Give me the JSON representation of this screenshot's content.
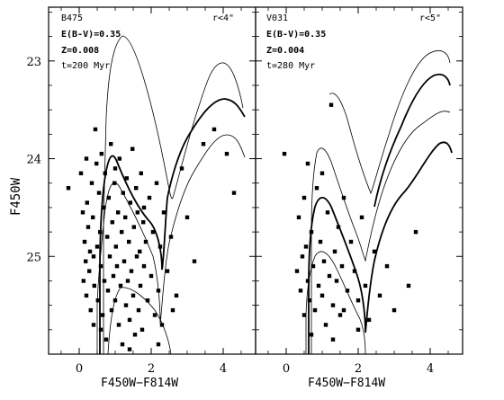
{
  "chart_data": [
    {
      "type": "scatter",
      "panel": "left",
      "annotations": [
        "B475",
        "E(B-V)=0.35",
        "Z=0.008",
        "t=200 Myr"
      ],
      "region": "r<4\"",
      "xlabel": "F450W−F814W",
      "ylabel": "F450W",
      "xlim": [
        -0.85,
        4.9
      ],
      "ylim": [
        26.0,
        22.45
      ],
      "y_inverted": true,
      "x_ticks": [
        "0",
        "2",
        "4"
      ],
      "y_ticks": [
        "23",
        "24",
        "25"
      ],
      "points": [
        {
          "x": -0.3,
          "y": 24.3
        },
        {
          "x": 0.05,
          "y": 24.15
        },
        {
          "x": 0.1,
          "y": 24.55
        },
        {
          "x": 0.12,
          "y": 25.25
        },
        {
          "x": 0.15,
          "y": 24.85
        },
        {
          "x": 0.18,
          "y": 25.05
        },
        {
          "x": 0.2,
          "y": 25.4
        },
        {
          "x": 0.22,
          "y": 24.45
        },
        {
          "x": 0.25,
          "y": 24.7
        },
        {
          "x": 0.28,
          "y": 25.15
        },
        {
          "x": 0.3,
          "y": 24.95
        },
        {
          "x": 0.32,
          "y": 25.55
        },
        {
          "x": 0.35,
          "y": 24.25
        },
        {
          "x": 0.38,
          "y": 24.6
        },
        {
          "x": 0.4,
          "y": 25.7
        },
        {
          "x": 0.42,
          "y": 25.3
        },
        {
          "x": 0.45,
          "y": 23.7
        },
        {
          "x": 0.48,
          "y": 24.05
        },
        {
          "x": 0.5,
          "y": 24.9
        },
        {
          "x": 0.52,
          "y": 25.45
        },
        {
          "x": 0.55,
          "y": 24.35
        },
        {
          "x": 0.58,
          "y": 24.75
        },
        {
          "x": 0.6,
          "y": 25.1
        },
        {
          "x": 0.62,
          "y": 23.95
        },
        {
          "x": 0.65,
          "y": 25.6
        },
        {
          "x": 0.68,
          "y": 24.5
        },
        {
          "x": 0.7,
          "y": 25.25
        },
        {
          "x": 0.72,
          "y": 24.15
        },
        {
          "x": 0.75,
          "y": 25.85
        },
        {
          "x": 0.78,
          "y": 24.8
        },
        {
          "x": 0.8,
          "y": 25.35
        },
        {
          "x": 0.82,
          "y": 24.4
        },
        {
          "x": 0.85,
          "y": 25.0
        },
        {
          "x": 0.88,
          "y": 23.85
        },
        {
          "x": 0.9,
          "y": 25.55
        },
        {
          "x": 0.92,
          "y": 24.65
        },
        {
          "x": 0.95,
          "y": 25.2
        },
        {
          "x": 0.98,
          "y": 24.25
        },
        {
          "x": 1.0,
          "y": 25.45
        },
        {
          "x": 1.02,
          "y": 24.9
        },
        {
          "x": 1.05,
          "y": 25.1
        },
        {
          "x": 1.08,
          "y": 24.55
        },
        {
          "x": 1.1,
          "y": 25.7
        },
        {
          "x": 1.12,
          "y": 24.0
        },
        {
          "x": 1.15,
          "y": 25.3
        },
        {
          "x": 1.18,
          "y": 24.75
        },
        {
          "x": 1.2,
          "y": 25.9
        },
        {
          "x": 1.22,
          "y": 24.35
        },
        {
          "x": 1.25,
          "y": 25.05
        },
        {
          "x": 1.28,
          "y": 24.6
        },
        {
          "x": 1.3,
          "y": 25.5
        },
        {
          "x": 1.32,
          "y": 24.2
        },
        {
          "x": 1.35,
          "y": 25.25
        },
        {
          "x": 1.38,
          "y": 24.85
        },
        {
          "x": 1.4,
          "y": 25.65
        },
        {
          "x": 1.42,
          "y": 24.45
        },
        {
          "x": 1.45,
          "y": 25.15
        },
        {
          "x": 1.48,
          "y": 23.9
        },
        {
          "x": 1.5,
          "y": 25.4
        },
        {
          "x": 1.52,
          "y": 24.7
        },
        {
          "x": 1.55,
          "y": 25.8
        },
        {
          "x": 1.58,
          "y": 24.3
        },
        {
          "x": 1.6,
          "y": 25.0
        },
        {
          "x": 1.62,
          "y": 24.55
        },
        {
          "x": 1.65,
          "y": 25.55
        },
        {
          "x": 1.68,
          "y": 24.95
        },
        {
          "x": 1.7,
          "y": 25.3
        },
        {
          "x": 1.72,
          "y": 24.15
        },
        {
          "x": 1.75,
          "y": 25.75
        },
        {
          "x": 1.78,
          "y": 24.65
        },
        {
          "x": 1.8,
          "y": 25.1
        },
        {
          "x": 1.85,
          "y": 24.85
        },
        {
          "x": 1.9,
          "y": 25.45
        },
        {
          "x": 1.95,
          "y": 24.4
        },
        {
          "x": 2.0,
          "y": 25.2
        },
        {
          "x": 2.05,
          "y": 24.75
        },
        {
          "x": 2.1,
          "y": 25.6
        },
        {
          "x": 2.15,
          "y": 24.25
        },
        {
          "x": 2.2,
          "y": 25.35
        },
        {
          "x": 2.25,
          "y": 24.9
        },
        {
          "x": 2.3,
          "y": 25.7
        },
        {
          "x": 2.35,
          "y": 24.55
        },
        {
          "x": 2.45,
          "y": 25.15
        },
        {
          "x": 2.55,
          "y": 24.8
        },
        {
          "x": 2.7,
          "y": 25.4
        },
        {
          "x": 2.85,
          "y": 24.1
        },
        {
          "x": 3.0,
          "y": 24.6
        },
        {
          "x": 3.2,
          "y": 25.05
        },
        {
          "x": 3.45,
          "y": 23.85
        },
        {
          "x": 3.75,
          "y": 23.7
        },
        {
          "x": 4.1,
          "y": 23.95
        },
        {
          "x": 4.3,
          "y": 24.35
        },
        {
          "x": 0.2,
          "y": 24.0
        },
        {
          "x": 0.6,
          "y": 25.75
        },
        {
          "x": 1.0,
          "y": 24.1
        },
        {
          "x": 1.4,
          "y": 25.95
        },
        {
          "x": 1.8,
          "y": 24.5
        },
        {
          "x": 2.2,
          "y": 25.9
        },
        {
          "x": 2.6,
          "y": 25.55
        },
        {
          "x": 0.4,
          "y": 25.0
        }
      ]
    },
    {
      "type": "scatter",
      "panel": "right",
      "annotations": [
        "V031",
        "E(B-V)=0.35",
        "Z=0.004",
        "t=280 Myr"
      ],
      "region": "r<5\"",
      "xlabel": "F450W−F814W",
      "ylabel": "",
      "xlim": [
        -0.85,
        4.9
      ],
      "ylim": [
        26.0,
        22.45
      ],
      "y_inverted": true,
      "x_ticks": [
        "0",
        "2",
        "4"
      ],
      "y_ticks": [],
      "points": [
        {
          "x": -0.05,
          "y": 23.95
        },
        {
          "x": 0.3,
          "y": 25.15
        },
        {
          "x": 0.35,
          "y": 24.6
        },
        {
          "x": 0.4,
          "y": 25.35
        },
        {
          "x": 0.45,
          "y": 25.0
        },
        {
          "x": 0.5,
          "y": 25.6
        },
        {
          "x": 0.55,
          "y": 24.9
        },
        {
          "x": 0.6,
          "y": 25.25
        },
        {
          "x": 0.65,
          "y": 25.45
        },
        {
          "x": 0.7,
          "y": 24.75
        },
        {
          "x": 0.75,
          "y": 25.1
        },
        {
          "x": 0.8,
          "y": 25.55
        },
        {
          "x": 0.85,
          "y": 24.3
        },
        {
          "x": 0.9,
          "y": 25.3
        },
        {
          "x": 0.95,
          "y": 24.85
        },
        {
          "x": 1.0,
          "y": 25.4
        },
        {
          "x": 1.05,
          "y": 25.05
        },
        {
          "x": 1.1,
          "y": 25.7
        },
        {
          "x": 1.15,
          "y": 24.55
        },
        {
          "x": 1.2,
          "y": 25.2
        },
        {
          "x": 1.25,
          "y": 23.45
        },
        {
          "x": 1.3,
          "y": 25.5
        },
        {
          "x": 1.35,
          "y": 24.95
        },
        {
          "x": 1.4,
          "y": 25.25
        },
        {
          "x": 1.45,
          "y": 24.7
        },
        {
          "x": 1.5,
          "y": 25.6
        },
        {
          "x": 1.55,
          "y": 25.1
        },
        {
          "x": 1.6,
          "y": 24.4
        },
        {
          "x": 1.7,
          "y": 25.35
        },
        {
          "x": 1.8,
          "y": 24.85
        },
        {
          "x": 1.9,
          "y": 25.15
        },
        {
          "x": 2.0,
          "y": 25.45
        },
        {
          "x": 2.1,
          "y": 24.6
        },
        {
          "x": 2.2,
          "y": 25.3
        },
        {
          "x": 2.3,
          "y": 25.65
        },
        {
          "x": 2.45,
          "y": 24.95
        },
        {
          "x": 2.6,
          "y": 25.4
        },
        {
          "x": 2.8,
          "y": 25.1
        },
        {
          "x": 3.0,
          "y": 25.55
        },
        {
          "x": 3.4,
          "y": 25.3
        },
        {
          "x": 3.6,
          "y": 24.75
        },
        {
          "x": 0.5,
          "y": 24.4
        },
        {
          "x": 0.7,
          "y": 25.8
        },
        {
          "x": 1.0,
          "y": 24.15
        },
        {
          "x": 1.3,
          "y": 25.85
        },
        {
          "x": 1.6,
          "y": 25.55
        },
        {
          "x": 2.0,
          "y": 25.75
        },
        {
          "x": 0.6,
          "y": 24.05
        }
      ]
    }
  ]
}
